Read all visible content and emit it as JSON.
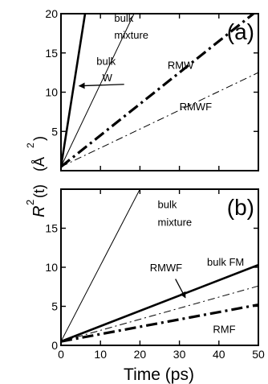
{
  "figure": {
    "ylabel_main": "R",
    "ylabel_sup": "2",
    "ylabel_paren": "(t)",
    "unit_text": "(Å",
    "unit_sup": "2",
    "unit_close": ")",
    "xlabel": "Time (ps)"
  },
  "chart_data": [
    {
      "type": "line",
      "panel_label": "(a)",
      "xlim": [
        0,
        50
      ],
      "ylim": [
        0,
        20
      ],
      "x_ticks": [
        0,
        10,
        20,
        30,
        40,
        50
      ],
      "y_ticks": [
        5,
        10,
        15,
        20
      ],
      "y_tick_labels": [
        "5",
        "10",
        "15",
        "20"
      ],
      "grid": false,
      "series": [
        {
          "id": "a-bulkW",
          "style": "thick-solid",
          "x": [
            0,
            6.1
          ],
          "y": [
            0.5,
            20
          ]
        },
        {
          "id": "a-bulkMixture",
          "style": "thin-solid",
          "x": [
            0,
            18.5
          ],
          "y": [
            0.5,
            20
          ]
        },
        {
          "id": "a-RMW",
          "style": "thick-dashdot",
          "x": [
            0,
            50
          ],
          "y": [
            0.5,
            20.5
          ]
        },
        {
          "id": "a-RMWF",
          "style": "thin-dashdot",
          "x": [
            0,
            50
          ],
          "y": [
            0.5,
            12.5
          ]
        }
      ],
      "annotations": [
        {
          "text": "bulk",
          "x": 13.5,
          "y": 19.0
        },
        {
          "text": "mixture",
          "x": 13.5,
          "y": 16.8
        },
        {
          "text": "bulk",
          "x": 9.0,
          "y": 13.5
        },
        {
          "text": "W",
          "x": 10.5,
          "y": 11.4
        },
        {
          "text": "RMW",
          "x": 27.0,
          "y": 13.0
        },
        {
          "text": "RMWF",
          "x": 30.0,
          "y": 7.7
        }
      ],
      "arrows": [
        {
          "from_x": 16.0,
          "from_y": 11.0,
          "to_x": 4.6,
          "to_y": 10.8
        }
      ]
    },
    {
      "type": "line",
      "panel_label": "(b)",
      "xlim": [
        0,
        50
      ],
      "ylim": [
        0,
        20
      ],
      "x_ticks": [
        0,
        10,
        20,
        30,
        40,
        50
      ],
      "x_tick_labels": [
        "0",
        "10",
        "20",
        "30",
        "40",
        "50"
      ],
      "y_ticks": [
        0,
        5,
        10,
        15
      ],
      "y_tick_labels": [
        "0",
        "5",
        "10",
        "15"
      ],
      "grid": false,
      "series": [
        {
          "id": "b-bulkMixture",
          "style": "thin-solid",
          "x": [
            0,
            20
          ],
          "y": [
            0.5,
            20
          ]
        },
        {
          "id": "b-bulkFM",
          "style": "thick-solid",
          "x": [
            0,
            50
          ],
          "y": [
            0.5,
            10.3
          ]
        },
        {
          "id": "b-RMWF",
          "style": "thin-dashdot",
          "x": [
            0,
            50
          ],
          "y": [
            0.5,
            7.6
          ]
        },
        {
          "id": "b-RMF",
          "style": "thick-dashdot",
          "x": [
            0,
            50
          ],
          "y": [
            0.5,
            5.2
          ]
        }
      ],
      "annotations": [
        {
          "text": "bulk",
          "x": 24.5,
          "y": 17.6
        },
        {
          "text": "mixture",
          "x": 24.5,
          "y": 15.3
        },
        {
          "text": "RMWF",
          "x": 22.5,
          "y": 9.5
        },
        {
          "text": "bulk FM",
          "x": 37.0,
          "y": 10.2
        },
        {
          "text": "RMF",
          "x": 38.5,
          "y": 1.6
        }
      ],
      "arrows": [
        {
          "from_x": 29.0,
          "from_y": 8.5,
          "to_x": 31.5,
          "to_y": 6.1
        }
      ]
    }
  ]
}
